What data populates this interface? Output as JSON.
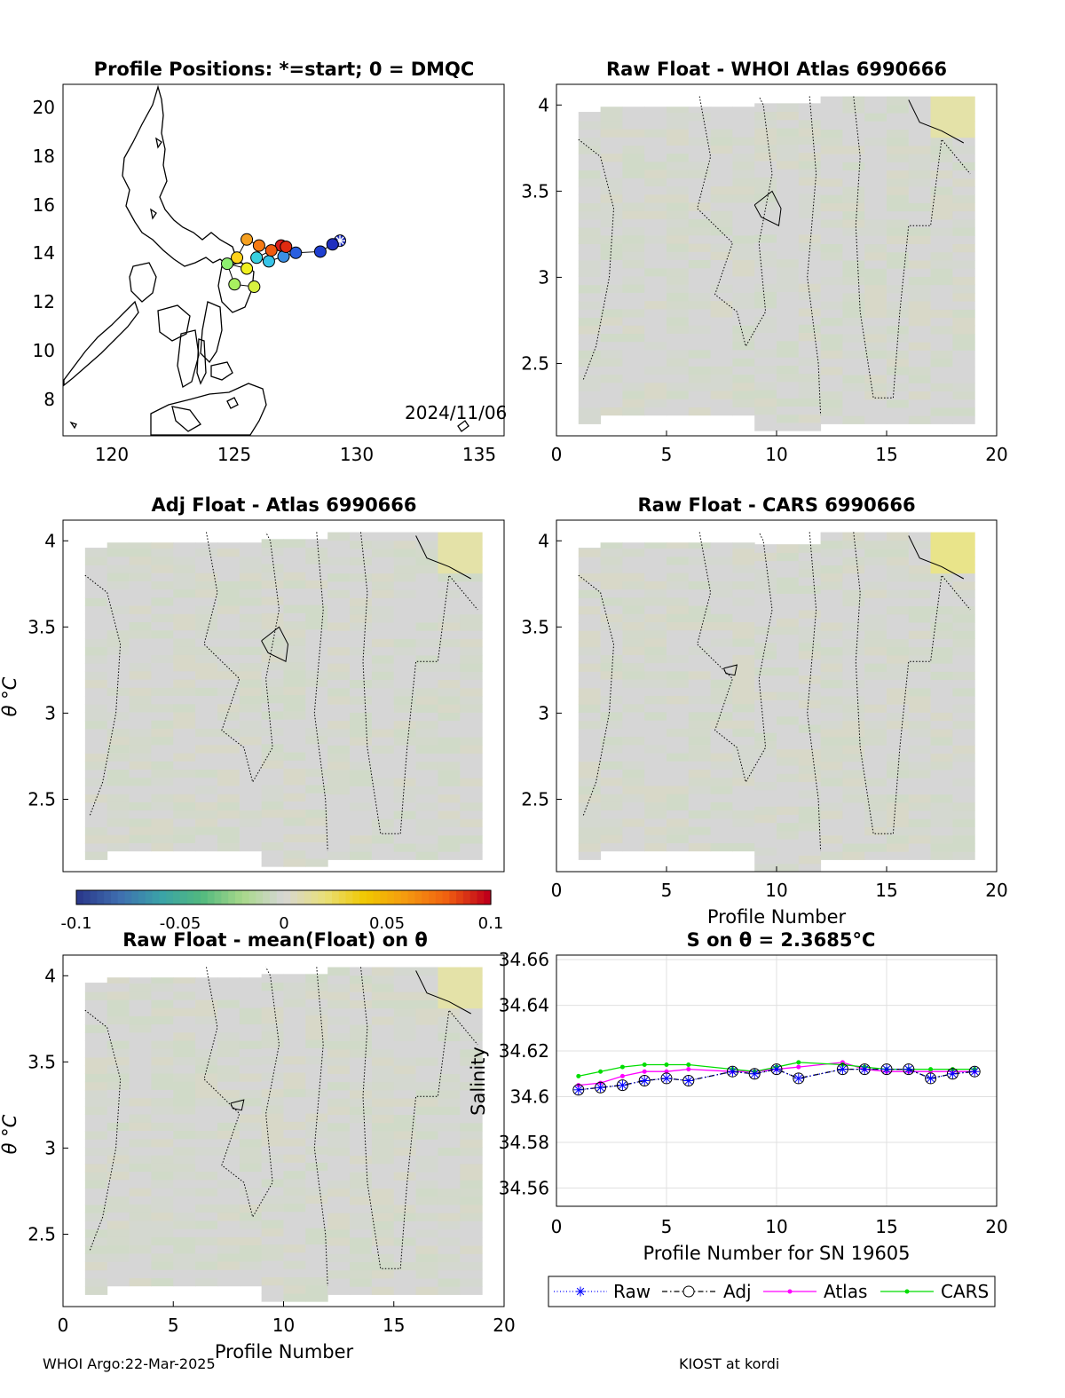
{
  "footer": {
    "left": "WHOI Argo:22-Mar-2025",
    "right": "KIOST at kordi"
  },
  "chart_data": [
    {
      "type": "scatter",
      "title": "Profile Positions: *=start; 0 = DMQC",
      "annotation": "2024/11/06",
      "x_ticks": [
        "120",
        "125",
        "130",
        "135"
      ],
      "y_ticks": [
        "8",
        "10",
        "12",
        "14",
        "16",
        "18",
        "20"
      ],
      "xlim": [
        118,
        136
      ],
      "ylim": [
        6.5,
        21
      ],
      "track": [
        {
          "lon": 129.3,
          "lat": 14.55,
          "color": "#1f2fbf",
          "marker": "star"
        },
        {
          "lon": 129.0,
          "lat": 14.4,
          "color": "#1f2fbf"
        },
        {
          "lon": 128.5,
          "lat": 14.1,
          "color": "#1f3fd0"
        },
        {
          "lon": 127.5,
          "lat": 14.05,
          "color": "#2a5fe0"
        },
        {
          "lon": 127.0,
          "lat": 13.9,
          "color": "#3a8fe6"
        },
        {
          "lon": 126.4,
          "lat": 13.7,
          "color": "#38c4e8"
        },
        {
          "lon": 125.9,
          "lat": 13.85,
          "color": "#38d0e0"
        },
        {
          "lon": 126.9,
          "lat": 14.35,
          "color": "#d81b1b"
        },
        {
          "lon": 127.1,
          "lat": 14.3,
          "color": "#e02a10"
        },
        {
          "lon": 126.5,
          "lat": 14.15,
          "color": "#f05a10"
        },
        {
          "lon": 126.0,
          "lat": 14.35,
          "color": "#f57a14"
        },
        {
          "lon": 125.5,
          "lat": 14.6,
          "color": "#f5a020"
        },
        {
          "lon": 125.1,
          "lat": 13.85,
          "color": "#ffd21a"
        },
        {
          "lon": 125.5,
          "lat": 13.4,
          "color": "#f0f020"
        },
        {
          "lon": 124.7,
          "lat": 13.6,
          "color": "#8ef070"
        },
        {
          "lon": 125.0,
          "lat": 12.75,
          "color": "#a8f060"
        },
        {
          "lon": 125.8,
          "lat": 12.65,
          "color": "#d8f040"
        }
      ]
    },
    {
      "type": "heatmap",
      "title": "Raw Float - WHOI Atlas  6990666",
      "x_ticks": [
        "0",
        "5",
        "10",
        "15",
        "20"
      ],
      "y_ticks": [
        "2.5",
        "3",
        "3.5",
        "4"
      ],
      "xlabel": "",
      "ylabel": "",
      "xlim": [
        0,
        20
      ],
      "ylim": [
        2.08,
        4.12
      ]
    },
    {
      "type": "heatmap",
      "title": "Adj Float - Atlas  6990666",
      "x_ticks": [],
      "y_ticks": [
        "2.5",
        "3",
        "3.5",
        "4"
      ],
      "xlabel": "",
      "ylabel": "θ °C",
      "xlim": [
        0,
        20
      ],
      "ylim": [
        2.08,
        4.12
      ]
    },
    {
      "type": "heatmap",
      "title": "Raw Float - CARS  6990666",
      "x_ticks": [
        "0",
        "5",
        "10",
        "15",
        "20"
      ],
      "y_ticks": [
        "2.5",
        "3",
        "3.5",
        "4"
      ],
      "xlabel": "Profile Number",
      "ylabel": "",
      "xlim": [
        0,
        20
      ],
      "ylim": [
        2.08,
        4.12
      ]
    },
    {
      "type": "heatmap",
      "title": "Raw Float - mean(Float) on θ",
      "x_ticks": [
        "0",
        "5",
        "10",
        "15",
        "20"
      ],
      "y_ticks": [
        "2.5",
        "3",
        "3.5",
        "4"
      ],
      "xlabel": "Profile Number",
      "ylabel": "θ °C",
      "xlim": [
        0,
        20
      ],
      "ylim": [
        2.08,
        4.12
      ]
    },
    {
      "type": "line",
      "title": "S on θ = 2.3685°C",
      "xlabel": "Profile Number for SN 19605",
      "ylabel": "Salinity",
      "x_ticks": [
        "0",
        "5",
        "10",
        "15",
        "20"
      ],
      "y_ticks": [
        "34.56",
        "34.58",
        "34.6",
        "34.62",
        "34.64",
        "34.66"
      ],
      "xlim": [
        0,
        20
      ],
      "ylim": [
        34.552,
        34.662
      ],
      "grid": true,
      "legend": "bottom",
      "x": [
        1,
        2,
        3,
        4,
        5,
        6,
        8,
        9,
        10,
        11,
        13,
        14,
        15,
        16,
        17,
        18,
        19
      ],
      "series": [
        {
          "name": "Raw",
          "color": "#0000ff",
          "values": [
            34.603,
            34.604,
            34.605,
            34.607,
            34.608,
            34.607,
            34.611,
            34.61,
            34.612,
            34.608,
            34.612,
            34.612,
            34.612,
            34.612,
            34.608,
            34.61,
            34.611
          ]
        },
        {
          "name": "Adj",
          "color": "#000000",
          "values": [
            34.603,
            34.604,
            34.605,
            34.607,
            34.608,
            34.607,
            34.611,
            34.61,
            34.612,
            34.608,
            34.612,
            34.612,
            34.612,
            34.612,
            34.608,
            34.61,
            34.611
          ]
        },
        {
          "name": "Atlas",
          "color": "#ff00ff",
          "values": [
            34.605,
            34.606,
            34.609,
            34.611,
            34.611,
            34.612,
            34.611,
            34.611,
            34.612,
            34.613,
            34.615,
            34.612,
            34.611,
            34.611,
            34.611,
            34.611,
            34.611
          ]
        },
        {
          "name": "CARS",
          "color": "#00dd00",
          "values": [
            34.609,
            34.611,
            34.613,
            34.614,
            34.614,
            34.614,
            34.612,
            34.611,
            34.613,
            34.615,
            34.614,
            34.613,
            34.612,
            34.612,
            34.612,
            34.612,
            34.612
          ]
        }
      ]
    }
  ],
  "colorbar": {
    "ticks": [
      "-0.1",
      "-0.05",
      "0",
      "0.05",
      "0.1"
    ],
    "colors": [
      "#2b3a8c",
      "#3f6fb0",
      "#3aa3a8",
      "#52b97e",
      "#a8d88a",
      "#d6d6d6",
      "#e8e07a",
      "#f0c800",
      "#f59a10",
      "#f06010",
      "#c0001a"
    ]
  }
}
